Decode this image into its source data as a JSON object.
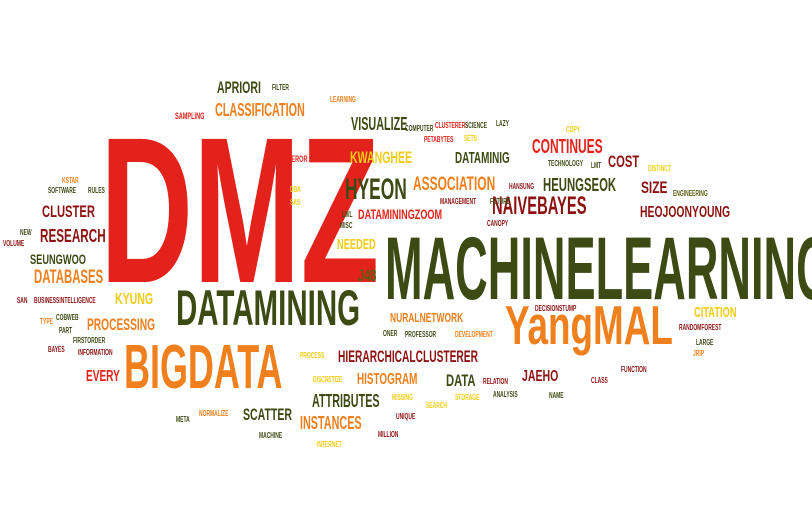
{
  "palette": {
    "red": "#e3231b",
    "darkred": "#8c1111",
    "orange": "#f07f1d",
    "yellow": "#f0cc15",
    "olive": "#5a5f13",
    "darkgreen": "#3d4a14",
    "khaki": "#b0a03a"
  },
  "words": [
    {
      "id": "dmz",
      "text": "DMZ",
      "color": "red"
    },
    {
      "id": "machinelearning",
      "text": "MACHINELEARNING",
      "color": "darkgreen"
    },
    {
      "id": "datamining",
      "text": "DATAMINING",
      "color": "darkgreen"
    },
    {
      "id": "bigdata",
      "text": "BIGDATA",
      "color": "orange"
    },
    {
      "id": "yangmal",
      "text": "YangMAL",
      "color": "orange"
    },
    {
      "id": "naivebayes",
      "text": "NAIVEBAYES",
      "color": "darkred"
    },
    {
      "id": "hyeon",
      "text": "HYEON",
      "color": "darkgreen"
    },
    {
      "id": "association",
      "text": "ASSOCIATION",
      "color": "orange"
    },
    {
      "id": "heungseok",
      "text": "HEUNGSEOK",
      "color": "darkgreen"
    },
    {
      "id": "heojoonyoung",
      "text": "HEOJOONYOUNG",
      "color": "darkred"
    },
    {
      "id": "dataminingzoom",
      "text": "DATAMININGZOOM",
      "color": "red"
    },
    {
      "id": "classification",
      "text": "CLASSIFICATION",
      "color": "orange"
    },
    {
      "id": "apriori",
      "text": "APRIORI",
      "color": "darkgreen"
    },
    {
      "id": "visualize",
      "text": "VISUALIZE",
      "color": "darkgreen"
    },
    {
      "id": "kwanghee",
      "text": "KWANGHEE",
      "color": "yellow"
    },
    {
      "id": "dataminig",
      "text": "DATAMINIG",
      "color": "darkgreen"
    },
    {
      "id": "continues",
      "text": "CONTINUES",
      "color": "red"
    },
    {
      "id": "cost",
      "text": "COST",
      "color": "darkred"
    },
    {
      "id": "size",
      "text": "SIZE",
      "color": "darkred"
    },
    {
      "id": "cluster",
      "text": "CLUSTER",
      "color": "darkred"
    },
    {
      "id": "research",
      "text": "RESEARCH",
      "color": "darkred"
    },
    {
      "id": "seungwoo",
      "text": "SEUNGWOO",
      "color": "darkgreen"
    },
    {
      "id": "databases",
      "text": "DATABASES",
      "color": "orange"
    },
    {
      "id": "kyung",
      "text": "KYUNG",
      "color": "yellow"
    },
    {
      "id": "processing",
      "text": "PROCESSING",
      "color": "orange"
    },
    {
      "id": "every",
      "text": "EVERY",
      "color": "red"
    },
    {
      "id": "needed",
      "text": "NEEDED",
      "color": "yellow"
    },
    {
      "id": "j48",
      "text": "J48",
      "color": "olive"
    },
    {
      "id": "nuralnetwork",
      "text": "NURALNETWORK",
      "color": "orange"
    },
    {
      "id": "hierarchicalclusterer",
      "text": "HIERARCHICALCLUSTERER",
      "color": "darkred"
    },
    {
      "id": "histogram",
      "text": "HISTOGRAM",
      "color": "orange"
    },
    {
      "id": "data",
      "text": "DATA",
      "color": "darkgreen"
    },
    {
      "id": "jaeho",
      "text": "JAEHO",
      "color": "darkred"
    },
    {
      "id": "attributes",
      "text": "ATTRIBUTES",
      "color": "darkgreen"
    },
    {
      "id": "instances",
      "text": "INSTANCES",
      "color": "orange"
    },
    {
      "id": "scatter",
      "text": "SCATTER",
      "color": "darkgreen"
    },
    {
      "id": "citation",
      "text": "CITATION",
      "color": "yellow"
    },
    {
      "id": "filter",
      "text": "FILTER",
      "color": "darkgreen"
    },
    {
      "id": "learning",
      "text": "LEARNING",
      "color": "orange"
    },
    {
      "id": "sampling",
      "text": "SAMPLING",
      "color": "red"
    },
    {
      "id": "computer",
      "text": "COMPUTER",
      "color": "darkgreen"
    },
    {
      "id": "petabytes",
      "text": "PETABYTES",
      "color": "red"
    },
    {
      "id": "clusterer",
      "text": "CLUSTERER",
      "color": "red"
    },
    {
      "id": "science",
      "text": "SCIENCE",
      "color": "darkgreen"
    },
    {
      "id": "lazy",
      "text": "LAZY",
      "color": "darkgreen"
    },
    {
      "id": "sets",
      "text": "SETS",
      "color": "yellow"
    },
    {
      "id": "copy",
      "text": "COPY",
      "color": "yellow"
    },
    {
      "id": "technology",
      "text": "TECHNOLOGY",
      "color": "darkgreen"
    },
    {
      "id": "lmt",
      "text": "LMT",
      "color": "darkgreen"
    },
    {
      "id": "distinct",
      "text": "DISTINCT",
      "color": "yellow"
    },
    {
      "id": "management",
      "text": "MANAGEMENT",
      "color": "darkred"
    },
    {
      "id": "future",
      "text": "FUTURE",
      "color": "darkgreen"
    },
    {
      "id": "hansung",
      "text": "HANSUNG",
      "color": "darkred"
    },
    {
      "id": "engineering",
      "text": "ENGINEERING",
      "color": "olive"
    },
    {
      "id": "zeror",
      "text": "ZEROR",
      "color": "red"
    },
    {
      "id": "kstar",
      "text": "KSTAR",
      "color": "orange"
    },
    {
      "id": "software",
      "text": "SOFTWARE",
      "color": "darkgreen"
    },
    {
      "id": "rules",
      "text": "RULES",
      "color": "darkgreen"
    },
    {
      "id": "dba",
      "text": "DBA",
      "color": "yellow"
    },
    {
      "id": "sas",
      "text": "SAS",
      "color": "yellow"
    },
    {
      "id": "lwl",
      "text": "LWL",
      "color": "darkgreen"
    },
    {
      "id": "misc",
      "text": "MISC",
      "color": "darkgreen"
    },
    {
      "id": "canopy",
      "text": "CANOPY",
      "color": "darkred"
    },
    {
      "id": "new",
      "text": "NEW",
      "color": "darkgreen"
    },
    {
      "id": "volume",
      "text": "VOLUME",
      "color": "darkred"
    },
    {
      "id": "san",
      "text": "SAN",
      "color": "darkred"
    },
    {
      "id": "businessintelligence",
      "text": "BUSINESSINTELLIGENCE",
      "color": "darkred"
    },
    {
      "id": "type",
      "text": "TYPE",
      "color": "orange"
    },
    {
      "id": "cobweb",
      "text": "COBWEB",
      "color": "darkgreen"
    },
    {
      "id": "part",
      "text": "PART",
      "color": "darkgreen"
    },
    {
      "id": "firstorder",
      "text": "FIRSTORDER",
      "color": "darkgreen"
    },
    {
      "id": "bayes",
      "text": "BAYES",
      "color": "darkred"
    },
    {
      "id": "information",
      "text": "INFORMATION",
      "color": "darkred"
    },
    {
      "id": "decisionstump",
      "text": "DECISIONSTUMP",
      "color": "darkred"
    },
    {
      "id": "randomforest",
      "text": "RANDOMFOREST",
      "color": "darkred"
    },
    {
      "id": "large",
      "text": "LARGE",
      "color": "darkgreen"
    },
    {
      "id": "jrip",
      "text": "JRIP",
      "color": "orange"
    },
    {
      "id": "oner",
      "text": "ONER",
      "color": "darkgreen"
    },
    {
      "id": "professor",
      "text": "PROFESSOR",
      "color": "darkgreen"
    },
    {
      "id": "development",
      "text": "DEVELOPMENT",
      "color": "orange"
    },
    {
      "id": "function",
      "text": "FUNCTION",
      "color": "darkred"
    },
    {
      "id": "process",
      "text": "PROCESS",
      "color": "yellow"
    },
    {
      "id": "discretize",
      "text": "DISCRETIZE",
      "color": "yellow"
    },
    {
      "id": "relation",
      "text": "RELATION",
      "color": "darkred"
    },
    {
      "id": "class",
      "text": "CLASS",
      "color": "darkred"
    },
    {
      "id": "missing",
      "text": "MISSING",
      "color": "yellow"
    },
    {
      "id": "storage",
      "text": "STORAGE",
      "color": "yellow"
    },
    {
      "id": "analysis",
      "text": "ANALYSIS",
      "color": "darkgreen"
    },
    {
      "id": "name",
      "text": "NAME",
      "color": "darkgreen"
    },
    {
      "id": "unique",
      "text": "UNIQUE",
      "color": "darkred"
    },
    {
      "id": "search",
      "text": "SEARCH",
      "color": "yellow"
    },
    {
      "id": "meta",
      "text": "META",
      "color": "darkgreen"
    },
    {
      "id": "normalize",
      "text": "NORMALIZE",
      "color": "orange"
    },
    {
      "id": "machine",
      "text": "MACHINE",
      "color": "darkgreen"
    },
    {
      "id": "million",
      "text": "MILLION",
      "color": "darkred"
    },
    {
      "id": "internet",
      "text": "INTERNET",
      "color": "yellow"
    }
  ]
}
